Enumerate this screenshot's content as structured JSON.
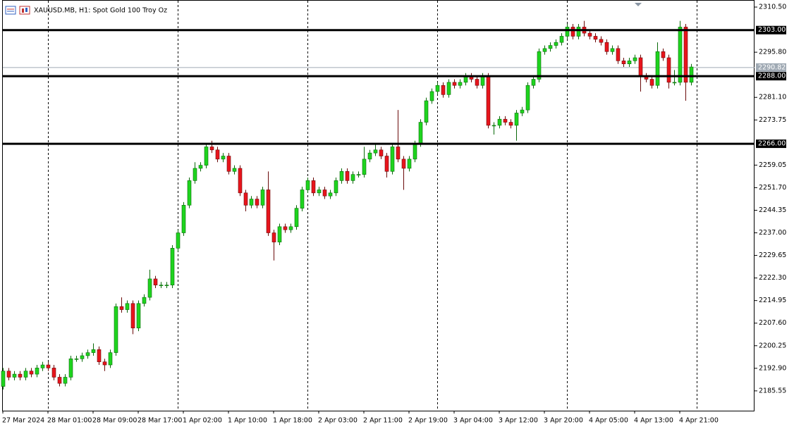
{
  "chart_data": {
    "type": "candlestick",
    "title": "XAUUSD.MB, H1:  Spot Gold 100 Troy Oz",
    "categories": [
      "27 Mar 2024",
      null,
      null,
      null,
      null,
      null,
      null,
      null,
      "28 Mar 01:00",
      null,
      null,
      null,
      null,
      null,
      null,
      null,
      "28 Mar 09:00",
      null,
      null,
      null,
      null,
      null,
      null,
      null,
      "28 Mar 17:00",
      null,
      null,
      null,
      null,
      null,
      null,
      null,
      "1 Apr 02:00",
      null,
      null,
      null,
      null,
      null,
      null,
      null,
      "1 Apr 10:00",
      null,
      null,
      null,
      null,
      null,
      null,
      null,
      "1 Apr 18:00",
      null,
      null,
      null,
      null,
      null,
      null,
      null,
      "2 Apr 03:00",
      null,
      null,
      null,
      null,
      null,
      null,
      null,
      "2 Apr 11:00",
      null,
      null,
      null,
      null,
      null,
      null,
      null,
      "2 Apr 19:00",
      null,
      null,
      null,
      null,
      null,
      null,
      null,
      "3 Apr 04:00",
      null,
      null,
      null,
      null,
      null,
      null,
      null,
      "3 Apr 12:00",
      null,
      null,
      null,
      null,
      null,
      null,
      null,
      "3 Apr 20:00",
      null,
      null,
      null,
      null,
      null,
      null,
      null,
      "4 Apr 05:00",
      null,
      null,
      null,
      null,
      null,
      null,
      null,
      "4 Apr 13:00",
      null,
      null,
      null,
      null,
      null,
      null,
      null,
      "4 Apr 21:00",
      null,
      null
    ],
    "open": [
      2187,
      2192,
      2190,
      2191,
      2190,
      2192,
      2191,
      2193,
      2194,
      2193,
      2190,
      2188,
      2190,
      2196,
      2196,
      2197,
      2198,
      2199,
      2195,
      2194,
      2198,
      2213,
      2212,
      2214,
      2206,
      2214,
      2216,
      2222,
      2220,
      2220,
      2220,
      2232,
      2237,
      2246,
      2254,
      2258,
      2259,
      2265,
      2264,
      2261,
      2262,
      2257,
      2258,
      2250,
      2246,
      2248,
      2246,
      2251,
      2237,
      2234,
      2239,
      2238,
      2239,
      2245,
      2251,
      2254,
      2250,
      2251,
      2249,
      2250,
      2254,
      2257,
      2254,
      2256,
      2256,
      2261,
      2263,
      2264,
      2262,
      2257,
      2265,
      2261,
      2258,
      2261,
      2266,
      2273,
      2280,
      2283,
      2285,
      2282,
      2286,
      2285,
      2286,
      2288,
      2287,
      2285,
      2288,
      2272,
      2272,
      2274,
      2273,
      2272,
      2276,
      2277,
      2285,
      2287,
      2296,
      2297,
      2298,
      2299,
      2301,
      2304,
      2301,
      2304,
      2302,
      2301,
      2300,
      2299,
      2296,
      2297,
      2293,
      2292,
      2293,
      2294,
      2288,
      2287,
      2285,
      2296,
      2294,
      2286,
      2286,
      2304,
      2286
    ],
    "high": [
      2193,
      2193,
      2192,
      2192,
      2193,
      2193,
      2194,
      2195,
      2195,
      2194,
      2191,
      2191,
      2197,
      2197,
      2198,
      2199,
      2201,
      2200,
      2196,
      2199,
      2214,
      2216,
      2215,
      2215,
      2215,
      2217,
      2225,
      2223,
      2221,
      2221,
      2233,
      2238,
      2247,
      2255,
      2260,
      2260,
      2266,
      2267,
      2265,
      2263,
      2263,
      2259,
      2259,
      2251,
      2249,
      2249,
      2252,
      2257,
      2238,
      2240,
      2240,
      2240,
      2246,
      2252,
      2255,
      2255,
      2252,
      2252,
      2251,
      2255,
      2258,
      2258,
      2257,
      2257,
      2265,
      2264,
      2266,
      2265,
      2263,
      2266,
      2277,
      2262,
      2262,
      2267,
      2274,
      2281,
      2284,
      2286,
      2286,
      2287,
      2287,
      2287,
      2289,
      2289,
      2288,
      2289,
      2289,
      2273,
      2275,
      2275,
      2274,
      2277,
      2278,
      2286,
      2288,
      2297,
      2298,
      2299,
      2300,
      2302,
      2305,
      2305,
      2305,
      2306,
      2303,
      2302,
      2301,
      2300,
      2298,
      2298,
      2294,
      2294,
      2295,
      2295,
      2289,
      2288,
      2299,
      2297,
      2295,
      2290,
      2306,
      2305,
      2292
    ],
    "low": [
      2186,
      2189,
      2189,
      2189,
      2189,
      2190,
      2190,
      2192,
      2192,
      2189,
      2187,
      2187,
      2189,
      2195,
      2195,
      2196,
      2197,
      2194,
      2192,
      2193,
      2197,
      2211,
      2211,
      2204,
      2205,
      2213,
      2215,
      2219,
      2219,
      2219,
      2219,
      2231,
      2236,
      2245,
      2253,
      2257,
      2258,
      2263,
      2260,
      2260,
      2256,
      2256,
      2249,
      2244,
      2245,
      2245,
      2245,
      2236,
      2228,
      2233,
      2237,
      2237,
      2238,
      2244,
      2250,
      2249,
      2249,
      2248,
      2248,
      2249,
      2253,
      2253,
      2253,
      2255,
      2255,
      2260,
      2262,
      2261,
      2255,
      2256,
      2260,
      2251,
      2257,
      2260,
      2265,
      2272,
      2279,
      2282,
      2281,
      2281,
      2284,
      2284,
      2285,
      2286,
      2284,
      2284,
      2271,
      2269,
      2271,
      2272,
      2271,
      2267,
      2275,
      2276,
      2284,
      2286,
      2295,
      2296,
      2297,
      2298,
      2300,
      2300,
      2300,
      2301,
      2300,
      2299,
      2298,
      2295,
      2295,
      2292,
      2291,
      2291,
      2292,
      2283,
      2286,
      2284,
      2284,
      2293,
      2284,
      2285,
      2285,
      2280,
      2285
    ],
    "close": [
      2192,
      2190,
      2191,
      2190,
      2192,
      2191,
      2193,
      2194,
      2193,
      2190,
      2188,
      2190,
      2196,
      2196,
      2197,
      2198,
      2199,
      2195,
      2194,
      2198,
      2213,
      2212,
      2214,
      2206,
      2214,
      2216,
      2222,
      2220,
      2220,
      2220,
      2232,
      2237,
      2246,
      2254,
      2258,
      2259,
      2265,
      2264,
      2261,
      2262,
      2257,
      2258,
      2250,
      2246,
      2248,
      2246,
      2251,
      2237,
      2234,
      2239,
      2238,
      2239,
      2245,
      2251,
      2254,
      2250,
      2251,
      2249,
      2250,
      2254,
      2257,
      2254,
      2256,
      2256,
      2261,
      2263,
      2264,
      2262,
      2257,
      2265,
      2261,
      2258,
      2261,
      2266,
      2273,
      2280,
      2283,
      2285,
      2282,
      2286,
      2285,
      2286,
      2288,
      2287,
      2285,
      2288,
      2272,
      2272,
      2274,
      2273,
      2272,
      2276,
      2277,
      2285,
      2287,
      2296,
      2297,
      2298,
      2299,
      2301,
      2304,
      2301,
      2304,
      2302,
      2301,
      2300,
      2299,
      2296,
      2297,
      2293,
      2292,
      2293,
      2294,
      2288,
      2287,
      2285,
      2296,
      2294,
      2286,
      2286,
      2304,
      2286,
      2291
    ],
    "up_color": "#1ed41e",
    "down_color": "#e8141c",
    "ylim": [
      2179.1,
      2312.8
    ],
    "yticks": [
      {
        "value": 2310.5,
        "label": "2310.50"
      },
      {
        "value": 2295.8,
        "label": "2295.80"
      },
      {
        "value": 2281.1,
        "label": "2281.10"
      },
      2273.75,
      2259.05,
      {
        "value": 2251.7,
        "label": "2251.70"
      },
      2244.35,
      {
        "value": 2237,
        "label": "2237.00"
      },
      2229.65,
      {
        "value": 2222.3,
        "label": "2222.30"
      },
      2214.95,
      {
        "value": 2207.6,
        "label": "2207.60"
      },
      2200.25,
      {
        "value": 2192.9,
        "label": "2192.90"
      },
      2185.55
    ],
    "levels": [
      {
        "value": 2303,
        "label": "2303.00"
      },
      {
        "value": 2288,
        "label": "2288.00"
      },
      {
        "value": 2266,
        "label": "2266.00"
      }
    ],
    "current_price": 2290.82,
    "current_price_color": "#a0aab4"
  }
}
